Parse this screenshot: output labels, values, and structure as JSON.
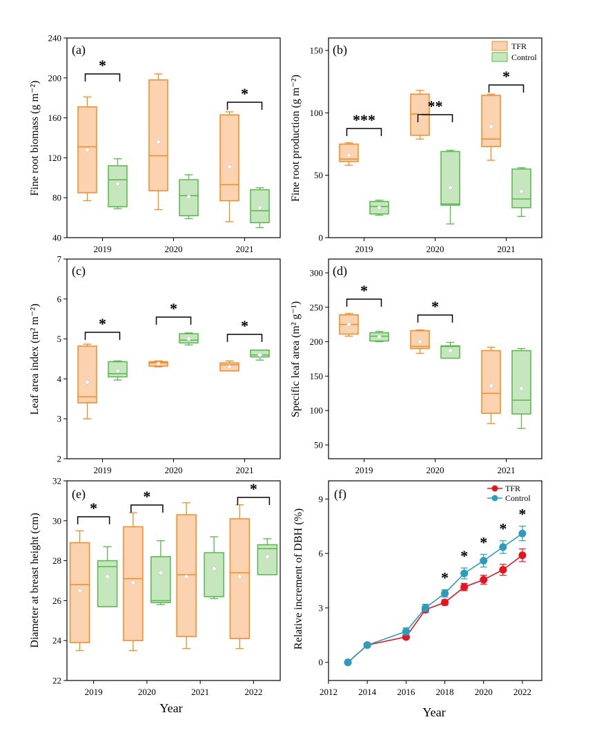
{
  "colors": {
    "tfr": "#F58A21",
    "tfr_fill": "#FCD3B0",
    "control": "#54B948",
    "control_fill": "#C6E6BE",
    "tfr_line": "#E8131C",
    "control_line": "#2A9DBF",
    "mean_marker": "#ffffff"
  },
  "legend": {
    "tfr": "TFR",
    "control": "Control"
  },
  "x_title": "Year",
  "chart_data": [
    {
      "type": "box",
      "panel_label": "(a)",
      "ylabel": "Fine root biomass (g m⁻²)",
      "ylim": [
        40,
        240
      ],
      "yticks": [
        "40",
        "80",
        "120",
        "160",
        "200",
        "240"
      ],
      "categories": [
        "2019",
        "2020",
        "2021"
      ],
      "series": [
        {
          "name": "TFR",
          "boxes": [
            {
              "min": 77,
              "q1": 85,
              "median": 131,
              "q3": 171,
              "max": 181,
              "mean": 128
            },
            {
              "min": 68,
              "q1": 87,
              "median": 122,
              "q3": 198,
              "max": 204,
              "mean": 136
            },
            {
              "min": 56,
              "q1": 77,
              "median": 93,
              "q3": 163,
              "max": 166,
              "mean": 111
            }
          ]
        },
        {
          "name": "Control",
          "boxes": [
            {
              "min": 69,
              "q1": 71,
              "median": 98,
              "q3": 112,
              "max": 119,
              "mean": 94
            },
            {
              "min": 59,
              "q1": 62,
              "median": 82,
              "q3": 98,
              "max": 103,
              "mean": 81
            },
            {
              "min": 50,
              "q1": 55,
              "median": 67,
              "q3": 88,
              "max": 90,
              "mean": 70
            }
          ]
        }
      ],
      "significance": [
        {
          "category": "2019",
          "label": "*"
        },
        {
          "category": "2021",
          "label": "*"
        }
      ]
    },
    {
      "type": "box",
      "panel_label": "(b)",
      "ylabel": "Fine root production (g m⁻²)",
      "ylim": [
        0,
        160
      ],
      "yticks": [
        "0",
        "50",
        "100",
        "150"
      ],
      "categories": [
        "2019",
        "2020",
        "2021"
      ],
      "series": [
        {
          "name": "TFR",
          "boxes": [
            {
              "min": 58,
              "q1": 61,
              "median": 63,
              "q3": 75,
              "max": 76,
              "mean": 66
            },
            {
              "min": 79,
              "q1": 82,
              "median": 99,
              "q3": 115,
              "max": 118,
              "mean": 98
            },
            {
              "min": 62,
              "q1": 73,
              "median": 79,
              "q3": 114,
              "max": 115,
              "mean": 89
            }
          ]
        },
        {
          "name": "Control",
          "boxes": [
            {
              "min": 18,
              "q1": 19,
              "median": 25,
              "q3": 29,
              "max": 30,
              "mean": 24
            },
            {
              "min": 11,
              "q1": 26,
              "median": 27,
              "q3": 69,
              "max": 70,
              "mean": 40
            },
            {
              "min": 17,
              "q1": 24,
              "median": 31,
              "q3": 55,
              "max": 56,
              "mean": 37
            }
          ]
        }
      ],
      "significance": [
        {
          "category": "2019",
          "label": "***"
        },
        {
          "category": "2020",
          "label": "**"
        },
        {
          "category": "2021",
          "label": "*"
        }
      ]
    },
    {
      "type": "box",
      "panel_label": "(c)",
      "ylabel": "Leaf area index (m² m⁻²)",
      "ylim": [
        2,
        7
      ],
      "yticks": [
        "2",
        "3",
        "4",
        "5",
        "6",
        "7"
      ],
      "categories": [
        "2019",
        "2020",
        "2021"
      ],
      "series": [
        {
          "name": "TFR",
          "boxes": [
            {
              "min": 3.0,
              "q1": 3.4,
              "median": 3.55,
              "q3": 4.82,
              "max": 4.87,
              "mean": 3.92
            },
            {
              "min": 4.3,
              "q1": 4.32,
              "median": 4.4,
              "q3": 4.43,
              "max": 4.45,
              "mean": 4.38
            },
            {
              "min": 4.2,
              "q1": 4.2,
              "median": 4.35,
              "q3": 4.4,
              "max": 4.45,
              "mean": 4.3
            }
          ]
        },
        {
          "name": "Control",
          "boxes": [
            {
              "min": 3.97,
              "q1": 4.05,
              "median": 4.13,
              "q3": 4.43,
              "max": 4.45,
              "mean": 4.2
            },
            {
              "min": 4.85,
              "q1": 4.9,
              "median": 4.97,
              "q3": 5.13,
              "max": 5.15,
              "mean": 5.0
            },
            {
              "min": 4.47,
              "q1": 4.55,
              "median": 4.6,
              "q3": 4.72,
              "max": 4.72,
              "mean": 4.6
            }
          ]
        }
      ],
      "significance": [
        {
          "category": "2019",
          "label": "*"
        },
        {
          "category": "2020",
          "label": "*"
        },
        {
          "category": "2021",
          "label": "*"
        }
      ]
    },
    {
      "type": "box",
      "panel_label": "(d)",
      "ylabel": "Specific leaf area (m² g⁻¹)",
      "ylim": [
        30,
        320
      ],
      "yticks": [
        "50",
        "100",
        "150",
        "200",
        "250",
        "300"
      ],
      "categories": [
        "2019",
        "2020",
        "2021"
      ],
      "series": [
        {
          "name": "TFR",
          "boxes": [
            {
              "min": 208,
              "q1": 211,
              "median": 225,
              "q3": 239,
              "max": 241,
              "mean": 225
            },
            {
              "min": 183,
              "q1": 190,
              "median": 193,
              "q3": 216,
              "max": 217,
              "mean": 200
            },
            {
              "min": 81,
              "q1": 96,
              "median": 125,
              "q3": 187,
              "max": 192,
              "mean": 136
            }
          ]
        },
        {
          "name": "Control",
          "boxes": [
            {
              "min": 200,
              "q1": 201,
              "median": 208,
              "q3": 213,
              "max": 215,
              "mean": 207
            },
            {
              "min": 176,
              "q1": 176,
              "median": 193,
              "q3": 194,
              "max": 199,
              "mean": 187
            },
            {
              "min": 74,
              "q1": 95,
              "median": 115,
              "q3": 187,
              "max": 190,
              "mean": 132
            }
          ]
        }
      ],
      "significance": [
        {
          "category": "2019",
          "label": "*"
        },
        {
          "category": "2020",
          "label": "*"
        }
      ]
    },
    {
      "type": "box",
      "panel_label": "(e)",
      "ylabel": "Diameter at breast height (cm)",
      "ylim": [
        22,
        32
      ],
      "yticks": [
        "22",
        "24",
        "26",
        "28",
        "30",
        "32"
      ],
      "categories": [
        "2019",
        "2020",
        "2021",
        "2022"
      ],
      "series": [
        {
          "name": "TFR",
          "boxes": [
            {
              "min": 23.5,
              "q1": 23.9,
              "median": 26.8,
              "q3": 28.9,
              "max": 29.5,
              "mean": 26.5
            },
            {
              "min": 23.5,
              "q1": 24.0,
              "median": 27.1,
              "q3": 29.7,
              "max": 30.4,
              "mean": 26.9
            },
            {
              "min": 23.6,
              "q1": 24.2,
              "median": 27.3,
              "q3": 30.3,
              "max": 30.9,
              "mean": 27.2
            },
            {
              "min": 23.6,
              "q1": 24.1,
              "median": 27.4,
              "q3": 30.1,
              "max": 30.8,
              "mean": 27.2
            }
          ]
        },
        {
          "name": "Control",
          "boxes": [
            {
              "min": 25.7,
              "q1": 25.7,
              "median": 27.7,
              "q3": 28.0,
              "max": 28.7,
              "mean": 27.2
            },
            {
              "min": 25.8,
              "q1": 25.9,
              "median": 26.0,
              "q3": 28.2,
              "max": 29.0,
              "mean": 27.4
            },
            {
              "min": 26.1,
              "q1": 26.2,
              "median": 26.2,
              "q3": 28.4,
              "max": 29.2,
              "mean": 27.6
            },
            {
              "min": 27.3,
              "q1": 27.3,
              "median": 28.6,
              "q3": 28.8,
              "max": 29.1,
              "mean": 28.2
            }
          ]
        }
      ],
      "significance": [
        {
          "category": "2019",
          "label": "*"
        },
        {
          "category": "2020",
          "label": "*"
        },
        {
          "category": "2022",
          "label": "*"
        }
      ]
    },
    {
      "type": "line",
      "panel_label": "(f)",
      "ylabel": "Relative increment of DBH (%)",
      "xlim": [
        2012,
        2023
      ],
      "xticks": [
        "2012",
        "2014",
        "2016",
        "2018",
        "2020",
        "2022"
      ],
      "ylim": [
        -1,
        10
      ],
      "yticks": [
        "0",
        "3",
        "6",
        "9"
      ],
      "series": [
        {
          "name": "TFR",
          "points": [
            {
              "x": 2013,
              "y": 0,
              "err": 0
            },
            {
              "x": 2014,
              "y": 0.95,
              "err": 0.1
            },
            {
              "x": 2016,
              "y": 1.4,
              "err": 0.12
            },
            {
              "x": 2017,
              "y": 2.9,
              "err": 0.15
            },
            {
              "x": 2018,
              "y": 3.3,
              "err": 0.15
            },
            {
              "x": 2019,
              "y": 4.15,
              "err": 0.2
            },
            {
              "x": 2020,
              "y": 4.55,
              "err": 0.25
            },
            {
              "x": 2021,
              "y": 5.1,
              "err": 0.3
            },
            {
              "x": 2022,
              "y": 5.9,
              "err": 0.35
            }
          ]
        },
        {
          "name": "Control",
          "points": [
            {
              "x": 2013,
              "y": 0,
              "err": 0
            },
            {
              "x": 2014,
              "y": 0.95,
              "err": 0.1
            },
            {
              "x": 2016,
              "y": 1.7,
              "err": 0.2
            },
            {
              "x": 2017,
              "y": 3.0,
              "err": 0.2
            },
            {
              "x": 2018,
              "y": 3.8,
              "err": 0.2
            },
            {
              "x": 2019,
              "y": 4.9,
              "err": 0.3
            },
            {
              "x": 2020,
              "y": 5.6,
              "err": 0.35
            },
            {
              "x": 2021,
              "y": 6.35,
              "err": 0.35
            },
            {
              "x": 2022,
              "y": 7.1,
              "err": 0.4
            }
          ]
        }
      ],
      "significance": [
        {
          "x": 2018,
          "label": "*"
        },
        {
          "x": 2019,
          "label": "*"
        },
        {
          "x": 2020,
          "label": "*"
        },
        {
          "x": 2021,
          "label": "*"
        },
        {
          "x": 2022,
          "label": "*"
        }
      ]
    }
  ]
}
